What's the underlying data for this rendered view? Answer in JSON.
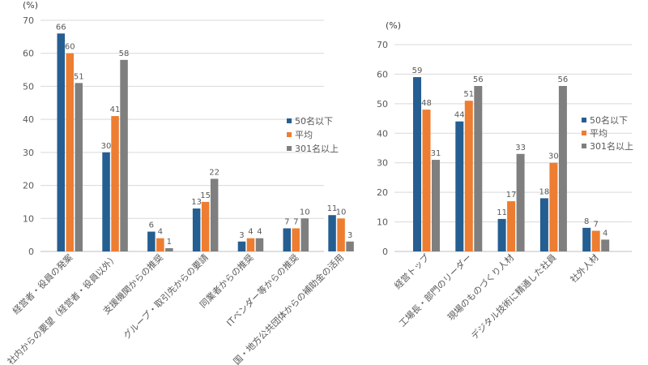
{
  "colors": {
    "s1": "#255e91",
    "s2": "#ed7d31",
    "s3": "#7f7f7f",
    "grid": "#d9d9d9",
    "text": "#595959",
    "axis": "#bfbfbf"
  },
  "chart_data": [
    {
      "type": "bar",
      "unit_label": "(%)",
      "ylim": [
        0,
        70
      ],
      "yticks": [
        0,
        10,
        20,
        30,
        40,
        50,
        60,
        70
      ],
      "grid": true,
      "legend_position": "right",
      "categories": [
        "経営者・役員の発案",
        "社内からの要望（経営者・役員以外）",
        "支援機関からの推奨",
        "グループ・取引先からの要請",
        "同業者からの推奨",
        "ITベンダー等からの推奨",
        "国・地方公共団体からの補助金の活用"
      ],
      "series": [
        {
          "name": "50名以下",
          "values": [
            66,
            30,
            6,
            13,
            3,
            7,
            11
          ]
        },
        {
          "name": "平均",
          "values": [
            60,
            41,
            4,
            15,
            4,
            7,
            10
          ]
        },
        {
          "name": "301名以上",
          "values": [
            51,
            58,
            1,
            22,
            4,
            10,
            3
          ]
        }
      ]
    },
    {
      "type": "bar",
      "unit_label": "(%)",
      "ylim": [
        0,
        70
      ],
      "yticks": [
        0,
        10,
        20,
        30,
        40,
        50,
        60,
        70
      ],
      "grid": true,
      "legend_position": "right",
      "categories": [
        "経営トップ",
        "工場長・部門のリーダー",
        "現場のものづくり人材",
        "デジタル技術に精通した社員",
        "社外人材"
      ],
      "series": [
        {
          "name": "50名以下",
          "values": [
            59,
            44,
            11,
            18,
            8
          ]
        },
        {
          "name": "平均",
          "values": [
            48,
            51,
            17,
            30,
            7
          ]
        },
        {
          "name": "301名以上",
          "values": [
            31,
            56,
            33,
            56,
            4
          ]
        }
      ]
    }
  ]
}
